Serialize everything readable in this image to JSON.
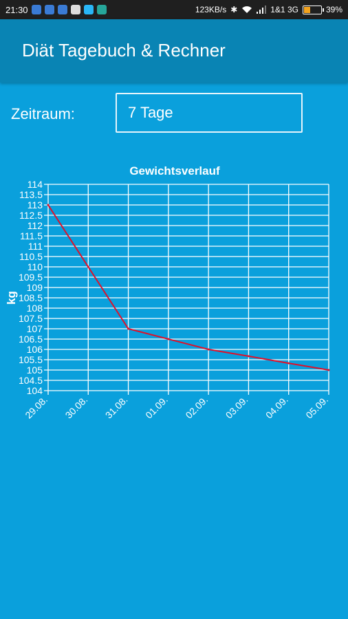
{
  "status_bar": {
    "time": "21:30",
    "network_speed": "123KB/s",
    "carrier": "1&1 3G",
    "battery_percent": "39%",
    "battery_level": 0.39
  },
  "app_bar": {
    "title": "Diät Tagebuch & Rechner"
  },
  "filter": {
    "label": "Zeitraum:",
    "selected": "7 Tage"
  },
  "colors": {
    "background": "#0aa0dc",
    "app_bar": "#0984b4",
    "line": "#e0102a",
    "grid": "#ffffff"
  },
  "chart_data": {
    "type": "line",
    "title": "Gewichtsverlauf",
    "ylabel": "kg",
    "xlabel": "",
    "categories": [
      "29.08.",
      "30.08.",
      "31.08.",
      "01.09.",
      "02.09.",
      "03.09.",
      "04.09.",
      "05.09."
    ],
    "series": [
      {
        "values": [
          113,
          110,
          107,
          106.5,
          106,
          105.67,
          105.33,
          105
        ]
      }
    ],
    "ylim": [
      104,
      114
    ],
    "yticks": [
      104,
      104.5,
      105,
      105.5,
      106,
      106.5,
      107,
      107.5,
      108,
      108.5,
      109,
      109.5,
      110,
      110.5,
      111,
      111.5,
      112,
      112.5,
      113,
      113.5,
      114
    ],
    "grid": true,
    "legend": "none"
  }
}
